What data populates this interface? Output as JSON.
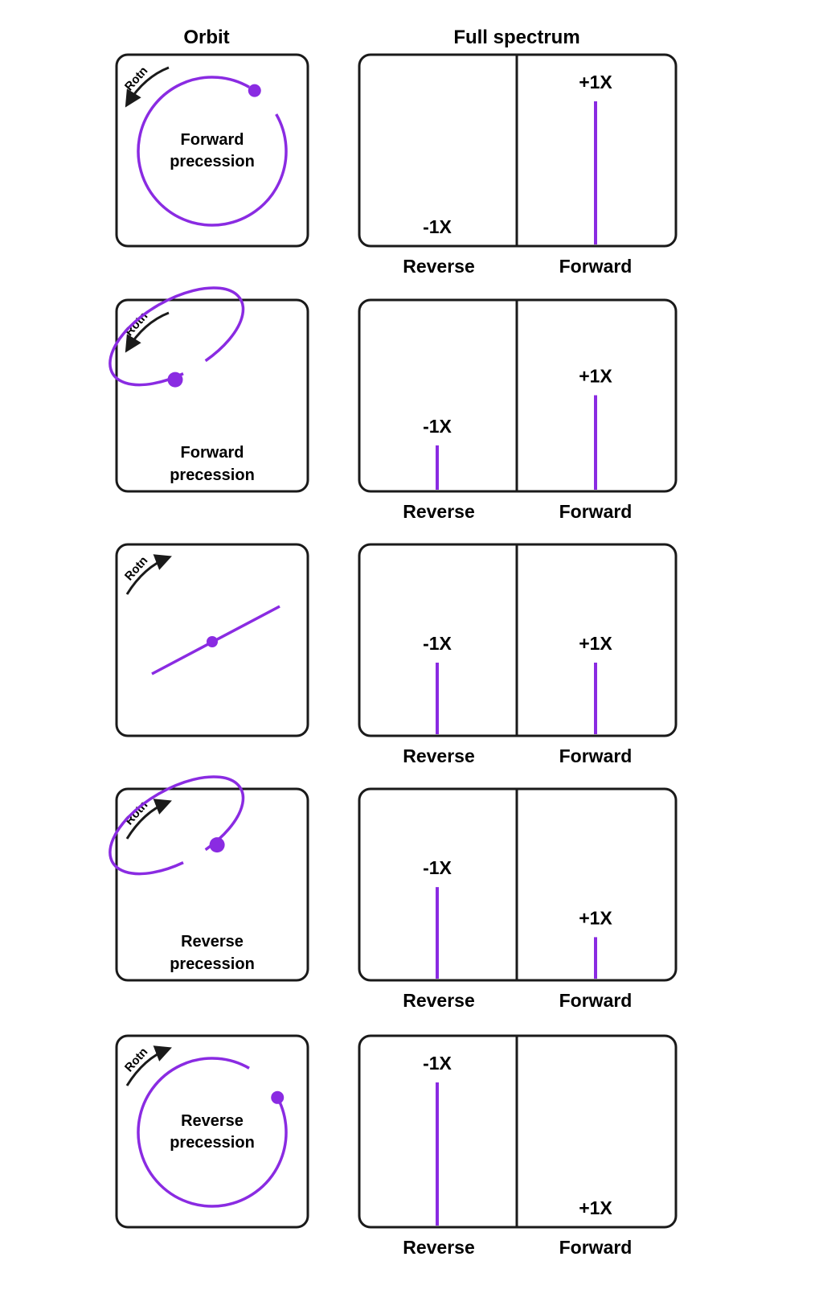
{
  "headers": {
    "orbit": "Orbit",
    "spectrum": "Full spectrum"
  },
  "colors": {
    "orbit_line": "#8a2be2",
    "frame": "#1a1a1a",
    "arrow": "#1a1a1a"
  },
  "rows": [
    {
      "rotation_label": "Rotn",
      "rotation_direction": "counterclockwise",
      "orbit_shape": "circle",
      "precession_line1": "Forward",
      "precession_line2": "precession",
      "reverse_label": "-1X",
      "forward_label": "+1X",
      "reverse_amplitude": 0,
      "forward_amplitude": 1.0,
      "reverse_axis_label": "Reverse",
      "forward_axis_label": "Forward"
    },
    {
      "rotation_label": "Rotn",
      "rotation_direction": "counterclockwise",
      "orbit_shape": "ellipse",
      "precession_line1": "Forward",
      "precession_line2": "precession",
      "reverse_label": "-1X",
      "forward_label": "+1X",
      "reverse_amplitude": 0.31,
      "forward_amplitude": 0.66,
      "reverse_axis_label": "Reverse",
      "forward_axis_label": "Forward"
    },
    {
      "rotation_label": "Rotn",
      "rotation_direction": "clockwise",
      "orbit_shape": "line",
      "precession_line1": "",
      "precession_line2": "",
      "reverse_label": "-1X",
      "forward_label": "+1X",
      "reverse_amplitude": 0.5,
      "forward_amplitude": 0.5,
      "reverse_axis_label": "Reverse",
      "forward_axis_label": "Forward"
    },
    {
      "rotation_label": "Rotn",
      "rotation_direction": "clockwise",
      "orbit_shape": "ellipse",
      "precession_line1": "Reverse",
      "precession_line2": "precession",
      "reverse_label": "-1X",
      "forward_label": "+1X",
      "reverse_amplitude": 0.64,
      "forward_amplitude": 0.29,
      "reverse_axis_label": "Reverse",
      "forward_axis_label": "Forward"
    },
    {
      "rotation_label": "Rotn",
      "rotation_direction": "clockwise",
      "orbit_shape": "circle",
      "precession_line1": "Reverse",
      "precession_line2": "precession",
      "reverse_label": "-1X",
      "forward_label": "+1X",
      "reverse_amplitude": 1.0,
      "forward_amplitude": 0,
      "reverse_axis_label": "Reverse",
      "forward_axis_label": "Forward"
    }
  ]
}
